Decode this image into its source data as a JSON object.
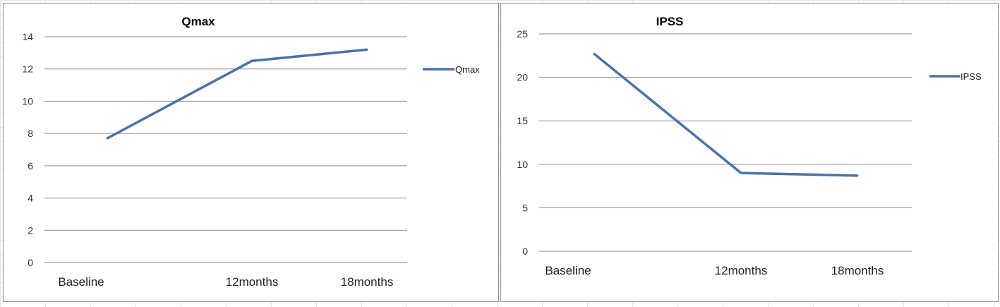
{
  "chart_data": [
    {
      "type": "line",
      "title": "Qmax",
      "categories": [
        "Baseline",
        "12months",
        "18months"
      ],
      "series": [
        {
          "name": "Qmax",
          "values": [
            7.7,
            12.5,
            13.2
          ],
          "color": "#4a72ab"
        }
      ],
      "ylim": [
        0,
        14
      ],
      "yticks": [
        0,
        2,
        4,
        6,
        8,
        10,
        12,
        14
      ],
      "grid": true,
      "legend": "right"
    },
    {
      "type": "line",
      "title": "IPSS",
      "categories": [
        "Baseline",
        "12months",
        "18months"
      ],
      "series": [
        {
          "name": "IPSS",
          "values": [
            22.7,
            9.0,
            8.7
          ],
          "color": "#4a72ab"
        }
      ],
      "ylim": [
        0,
        25
      ],
      "yticks": [
        0,
        5,
        10,
        15,
        20,
        25
      ],
      "grid": true,
      "legend": "right"
    }
  ]
}
